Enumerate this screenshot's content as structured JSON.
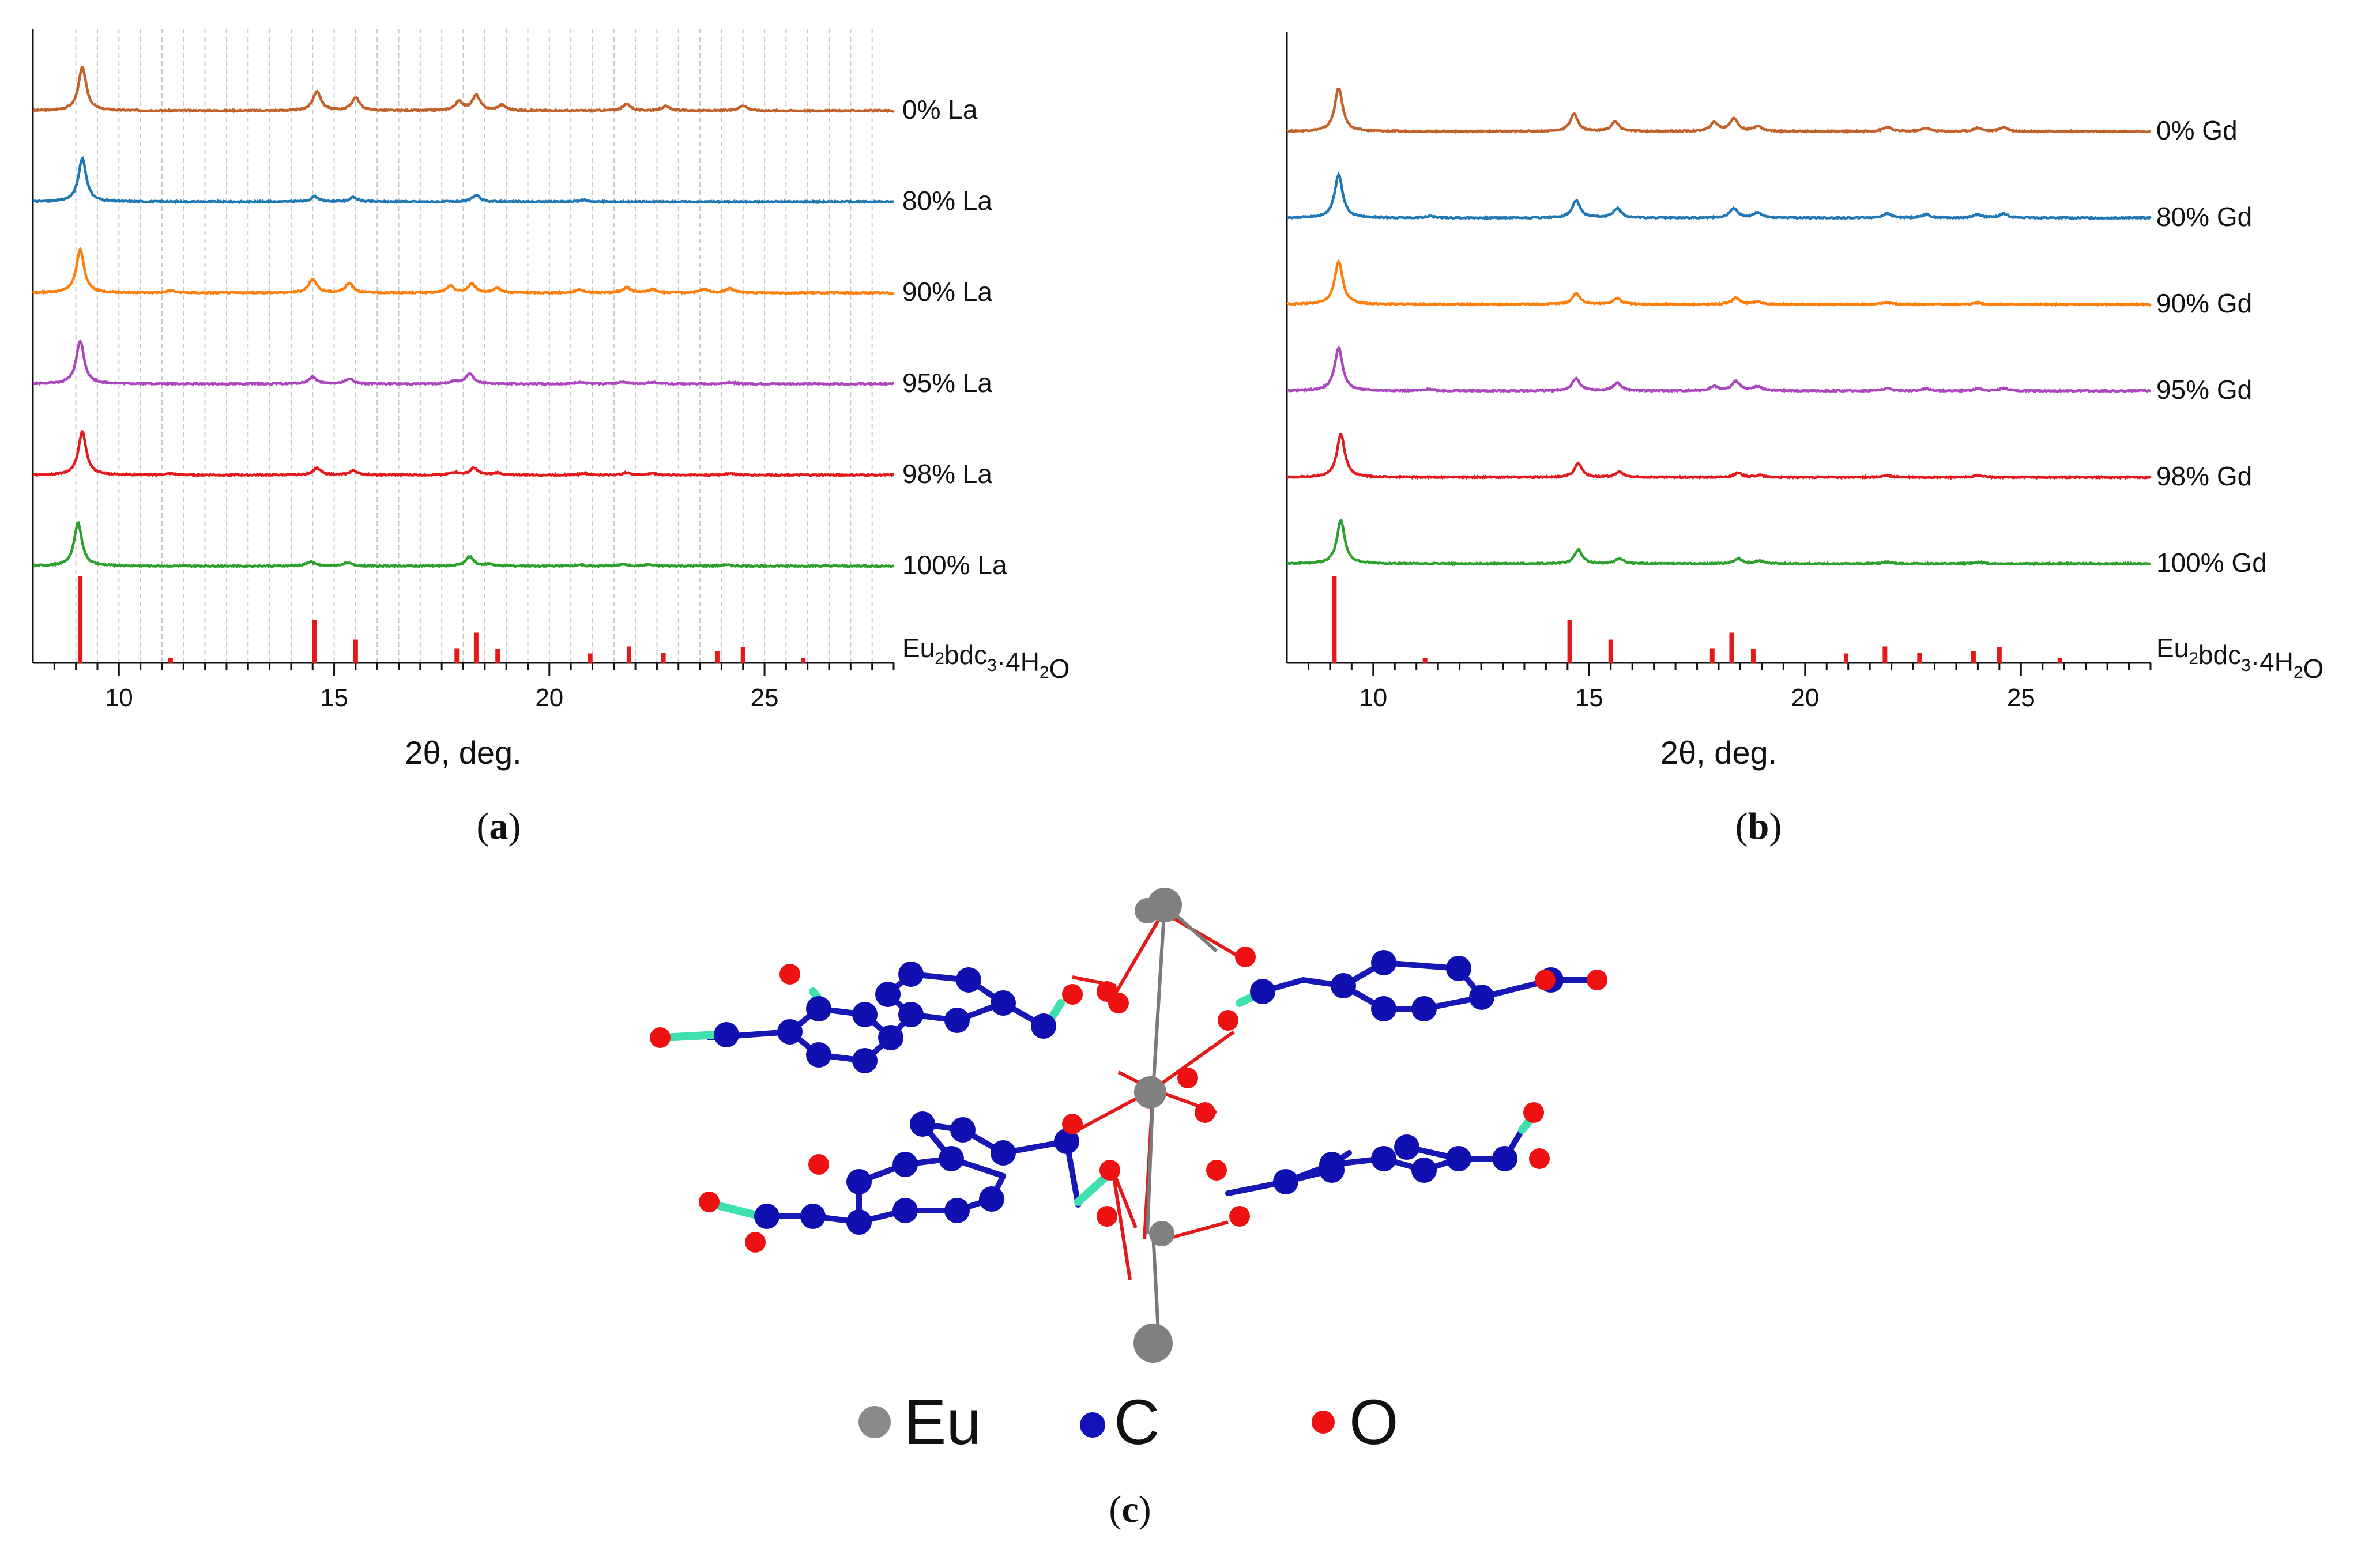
{
  "chart_data": [
    {
      "type": "line",
      "panel": "a",
      "panel_label": "a",
      "xlabel": "2θ, deg.",
      "ylabel": "",
      "xlim": [
        8,
        28
      ],
      "xticks": [
        10,
        15,
        20,
        25
      ],
      "grid": "vertical dashed",
      "series": [
        {
          "name": "0% La",
          "label": "0% La",
          "color": "#c2622b",
          "peaks": [
            [
              9.15,
              1.0
            ],
            [
              14.6,
              0.45
            ],
            [
              15.5,
              0.3
            ],
            [
              17.9,
              0.2
            ],
            [
              18.3,
              0.35
            ],
            [
              18.9,
              0.12
            ],
            [
              21.8,
              0.15
            ],
            [
              22.7,
              0.1
            ],
            [
              24.5,
              0.12
            ]
          ]
        },
        {
          "name": "80% La",
          "label": "80% La",
          "color": "#1f77b4",
          "peaks": [
            [
              9.15,
              1.0
            ],
            [
              14.55,
              0.12
            ],
            [
              15.45,
              0.1
            ],
            [
              18.3,
              0.15
            ],
            [
              20.8,
              0.04
            ]
          ]
        },
        {
          "name": "90% La",
          "label": "90% La",
          "color": "#ff7f0e",
          "peaks": [
            [
              9.1,
              1.0
            ],
            [
              11.2,
              0.05
            ],
            [
              14.5,
              0.32
            ],
            [
              15.35,
              0.22
            ],
            [
              17.7,
              0.15
            ],
            [
              18.2,
              0.2
            ],
            [
              18.8,
              0.1
            ],
            [
              20.7,
              0.08
            ],
            [
              21.8,
              0.12
            ],
            [
              22.4,
              0.08
            ],
            [
              23.6,
              0.08
            ],
            [
              24.2,
              0.1
            ]
          ]
        },
        {
          "name": "95% La",
          "label": "95% La",
          "color": "#ab47bc",
          "peaks": [
            [
              9.1,
              1.0
            ],
            [
              14.5,
              0.16
            ],
            [
              15.35,
              0.12
            ],
            [
              17.8,
              0.06
            ],
            [
              18.15,
              0.24
            ],
            [
              20.7,
              0.04
            ],
            [
              21.7,
              0.05
            ],
            [
              22.4,
              0.04
            ],
            [
              24.2,
              0.04
            ]
          ]
        },
        {
          "name": "98% La",
          "label": "98% La",
          "color": "#e31a1c",
          "peaks": [
            [
              9.15,
              1.0
            ],
            [
              11.2,
              0.03
            ],
            [
              14.6,
              0.16
            ],
            [
              15.45,
              0.1
            ],
            [
              17.8,
              0.06
            ],
            [
              18.25,
              0.16
            ],
            [
              18.8,
              0.05
            ],
            [
              20.8,
              0.04
            ],
            [
              21.8,
              0.05
            ],
            [
              22.4,
              0.04
            ],
            [
              24.2,
              0.04
            ]
          ]
        },
        {
          "name": "100% La",
          "label": "100% La",
          "color": "#2ca02c",
          "peaks": [
            [
              9.05,
              1.0
            ],
            [
              14.45,
              0.1
            ],
            [
              15.3,
              0.08
            ],
            [
              18.15,
              0.22
            ],
            [
              18.6,
              0.04
            ],
            [
              20.7,
              0.03
            ],
            [
              21.7,
              0.04
            ],
            [
              22.3,
              0.03
            ],
            [
              24.1,
              0.03
            ]
          ]
        }
      ],
      "reference": {
        "label": "Eu2bdc3·4H2O",
        "label_main": "Eu",
        "label_sub1": "2",
        "label_mid": "bdc",
        "label_sub2": "3",
        "label_dot": "·4H",
        "label_sub3": "2",
        "label_end": "O",
        "color": "#e31a1c",
        "sticks": [
          [
            9.1,
            1.0
          ],
          [
            11.2,
            0.06
          ],
          [
            14.55,
            0.5
          ],
          [
            15.5,
            0.27
          ],
          [
            17.85,
            0.17
          ],
          [
            18.3,
            0.35
          ],
          [
            18.8,
            0.16
          ],
          [
            20.95,
            0.11
          ],
          [
            21.85,
            0.19
          ],
          [
            22.65,
            0.12
          ],
          [
            23.9,
            0.14
          ],
          [
            24.5,
            0.18
          ],
          [
            25.9,
            0.06
          ]
        ]
      }
    },
    {
      "type": "line",
      "panel": "b",
      "panel_label": "b",
      "xlabel": "2θ, deg.",
      "ylabel": "",
      "xlim": [
        8,
        28
      ],
      "xticks": [
        10,
        15,
        20,
        25
      ],
      "grid": "none",
      "series": [
        {
          "name": "0% Gd",
          "label": "0% Gd",
          "color": "#c2622b",
          "peaks": [
            [
              9.2,
              1.0
            ],
            [
              14.65,
              0.4
            ],
            [
              15.6,
              0.22
            ],
            [
              17.9,
              0.2
            ],
            [
              18.35,
              0.3
            ],
            [
              18.9,
              0.12
            ],
            [
              21.9,
              0.1
            ],
            [
              22.8,
              0.08
            ],
            [
              24.0,
              0.08
            ],
            [
              24.6,
              0.1
            ]
          ]
        },
        {
          "name": "80% Gd",
          "label": "80% Gd",
          "color": "#1f77b4",
          "peaks": [
            [
              9.2,
              1.0
            ],
            [
              11.3,
              0.04
            ],
            [
              14.7,
              0.4
            ],
            [
              15.65,
              0.22
            ],
            [
              18.35,
              0.22
            ],
            [
              18.9,
              0.12
            ],
            [
              21.9,
              0.1
            ],
            [
              22.8,
              0.08
            ],
            [
              24.0,
              0.08
            ],
            [
              24.6,
              0.1
            ]
          ]
        },
        {
          "name": "90% Gd",
          "label": "90% Gd",
          "color": "#ff7f0e",
          "peaks": [
            [
              9.2,
              1.0
            ],
            [
              14.7,
              0.25
            ],
            [
              15.65,
              0.14
            ],
            [
              18.4,
              0.15
            ],
            [
              18.9,
              0.06
            ],
            [
              21.9,
              0.05
            ],
            [
              24.0,
              0.04
            ]
          ]
        },
        {
          "name": "95% Gd",
          "label": "95% Gd",
          "color": "#ab47bc",
          "peaks": [
            [
              9.2,
              1.0
            ],
            [
              11.3,
              0.04
            ],
            [
              14.7,
              0.28
            ],
            [
              15.65,
              0.18
            ],
            [
              17.9,
              0.1
            ],
            [
              18.4,
              0.22
            ],
            [
              18.9,
              0.1
            ],
            [
              21.9,
              0.06
            ],
            [
              22.8,
              0.05
            ],
            [
              24.0,
              0.05
            ],
            [
              24.6,
              0.06
            ]
          ]
        },
        {
          "name": "98% Gd",
          "label": "98% Gd",
          "color": "#e31a1c",
          "peaks": [
            [
              9.25,
              1.0
            ],
            [
              14.75,
              0.32
            ],
            [
              15.7,
              0.12
            ],
            [
              18.45,
              0.1
            ],
            [
              18.95,
              0.05
            ],
            [
              21.9,
              0.04
            ],
            [
              24.0,
              0.04
            ]
          ]
        },
        {
          "name": "100% Gd",
          "label": "100% Gd",
          "color": "#2ca02c",
          "peaks": [
            [
              9.25,
              1.0
            ],
            [
              14.75,
              0.32
            ],
            [
              15.7,
              0.12
            ],
            [
              18.45,
              0.12
            ],
            [
              18.95,
              0.07
            ],
            [
              21.9,
              0.04
            ],
            [
              24.0,
              0.04
            ]
          ]
        }
      ],
      "reference": {
        "label": "Eu2bdc3·4H2O",
        "label_main": "Eu",
        "label_sub1": "2",
        "label_mid": "bdc",
        "label_sub2": "3",
        "label_dot": "·4H",
        "label_sub3": "2",
        "label_end": "O",
        "color": "#e31a1c",
        "sticks": [
          [
            9.1,
            1.0
          ],
          [
            11.2,
            0.06
          ],
          [
            14.55,
            0.5
          ],
          [
            15.5,
            0.27
          ],
          [
            17.85,
            0.17
          ],
          [
            18.3,
            0.35
          ],
          [
            18.8,
            0.16
          ],
          [
            20.95,
            0.11
          ],
          [
            21.85,
            0.19
          ],
          [
            22.65,
            0.12
          ],
          [
            23.9,
            0.14
          ],
          [
            24.5,
            0.18
          ],
          [
            25.9,
            0.06
          ]
        ]
      }
    }
  ],
  "structure": {
    "panel_label": "c",
    "legend": [
      {
        "element": "Eu",
        "color": "#808080"
      },
      {
        "element": "C",
        "color": "#1010b0"
      },
      {
        "element": "O",
        "color": "#ee1111"
      }
    ]
  }
}
